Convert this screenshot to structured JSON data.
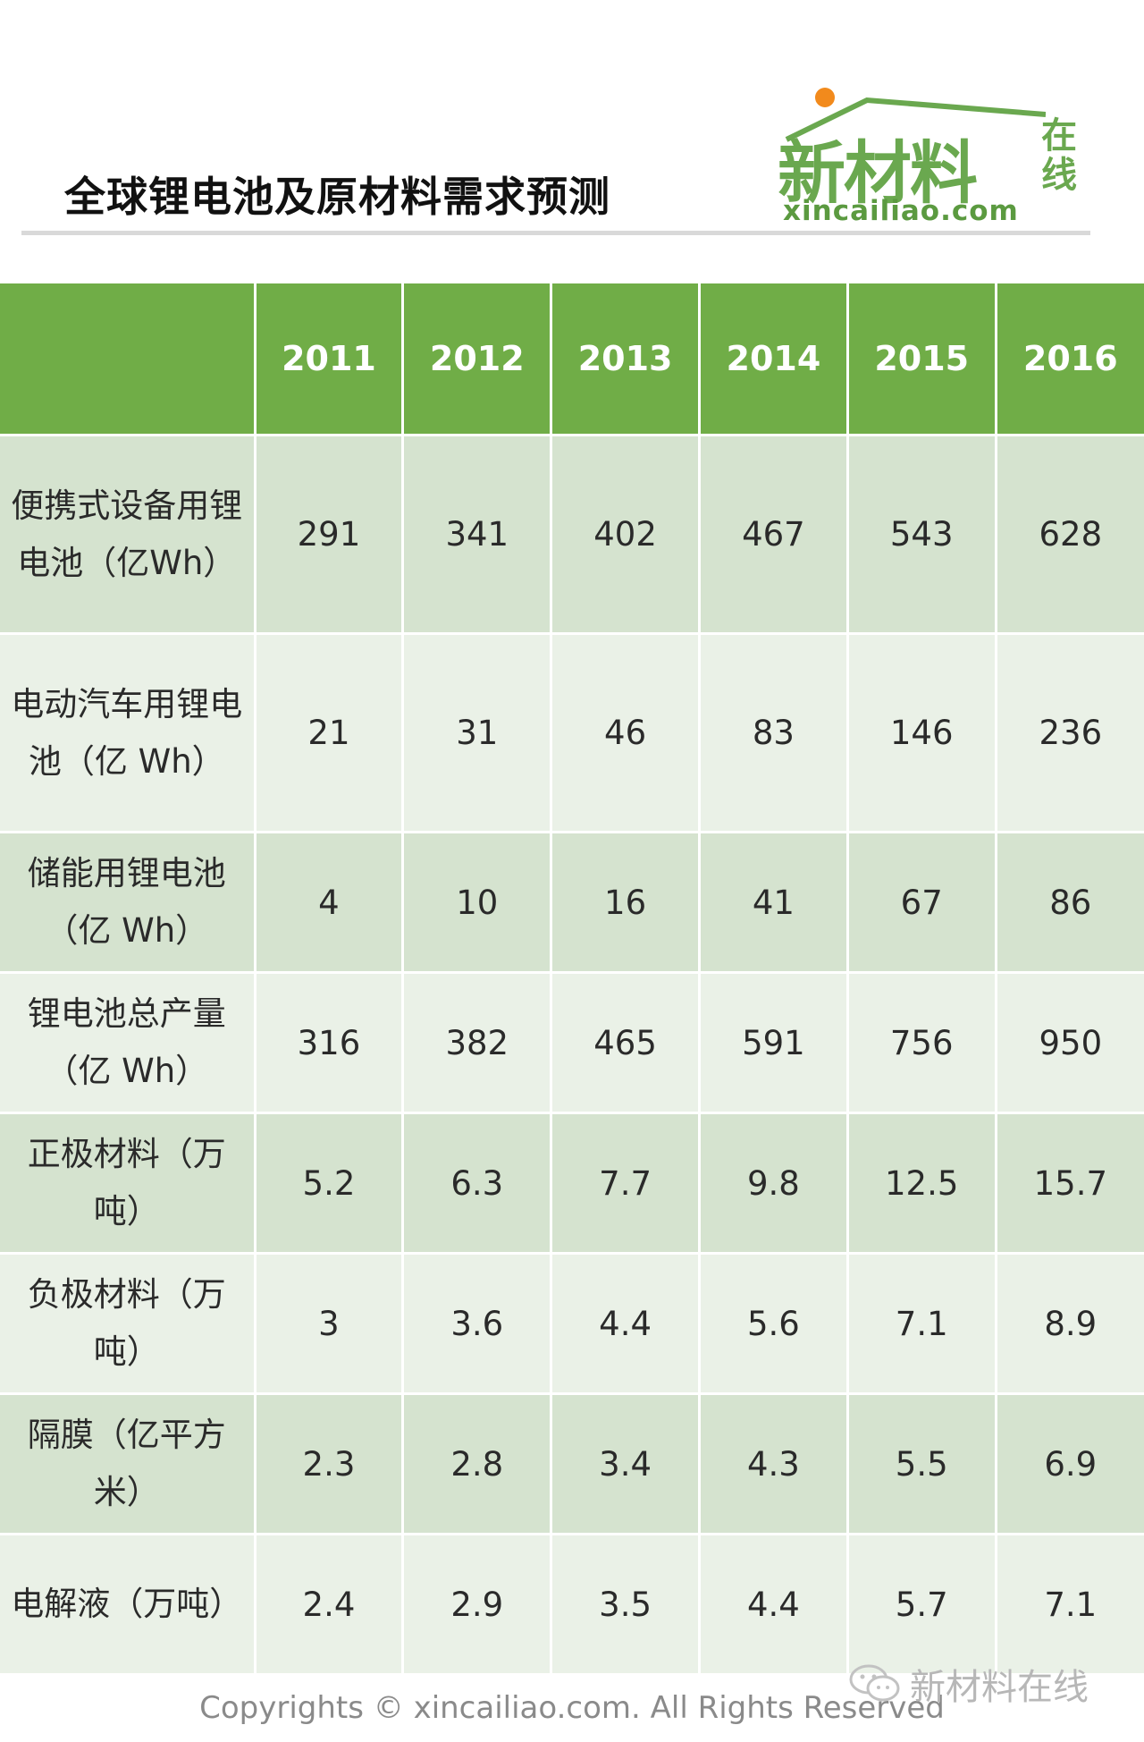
{
  "header": {
    "title": "全球锂电池及原材料需求预测",
    "logo": {
      "main_text": "新材料",
      "side_text_1": "在",
      "side_text_2": "线",
      "domain": "xincailiao.com"
    }
  },
  "table": {
    "corner": "",
    "years": [
      "2011",
      "2012",
      "2013",
      "2014",
      "2015",
      "2016"
    ],
    "rows": [
      {
        "label": "便携式设备用锂电池（亿Wh）",
        "values": [
          "291",
          "341",
          "402",
          "467",
          "543",
          "628"
        ]
      },
      {
        "label": "电动汽车用锂电池（亿 Wh）",
        "values": [
          "21",
          "31",
          "46",
          "83",
          "146",
          "236"
        ]
      },
      {
        "label": "储能用锂电池（亿 Wh）",
        "values": [
          "4",
          "10",
          "16",
          "41",
          "67",
          "86"
        ]
      },
      {
        "label": "锂电池总产量（亿 Wh）",
        "values": [
          "316",
          "382",
          "465",
          "591",
          "756",
          "950"
        ]
      },
      {
        "label": "正极材料（万吨）",
        "values": [
          "5.2",
          "6.3",
          "7.7",
          "9.8",
          "12.5",
          "15.7"
        ]
      },
      {
        "label": "负极材料（万吨）",
        "values": [
          "3",
          "3.6",
          "4.4",
          "5.6",
          "7.1",
          "8.9"
        ]
      },
      {
        "label": "隔膜（亿平方米）",
        "values": [
          "2.3",
          "2.8",
          "3.4",
          "4.3",
          "5.5",
          "6.9"
        ]
      },
      {
        "label": "电解液（万吨）",
        "values": [
          "2.4",
          "2.9",
          "3.5",
          "4.4",
          "5.7",
          "7.1"
        ]
      }
    ]
  },
  "footer": {
    "copyright": "Copyrights © xincailiao.com. All Rights Reserved",
    "watermark": "新材料在线"
  },
  "colors": {
    "header_green": "#70ad47",
    "row_dark": "#d5e3cf",
    "row_light": "#eaf1e7",
    "logo_green": "#6aa84f",
    "logo_dot": "#f28a1c"
  },
  "icons": {
    "watermark_icon": "wechat-icon"
  }
}
